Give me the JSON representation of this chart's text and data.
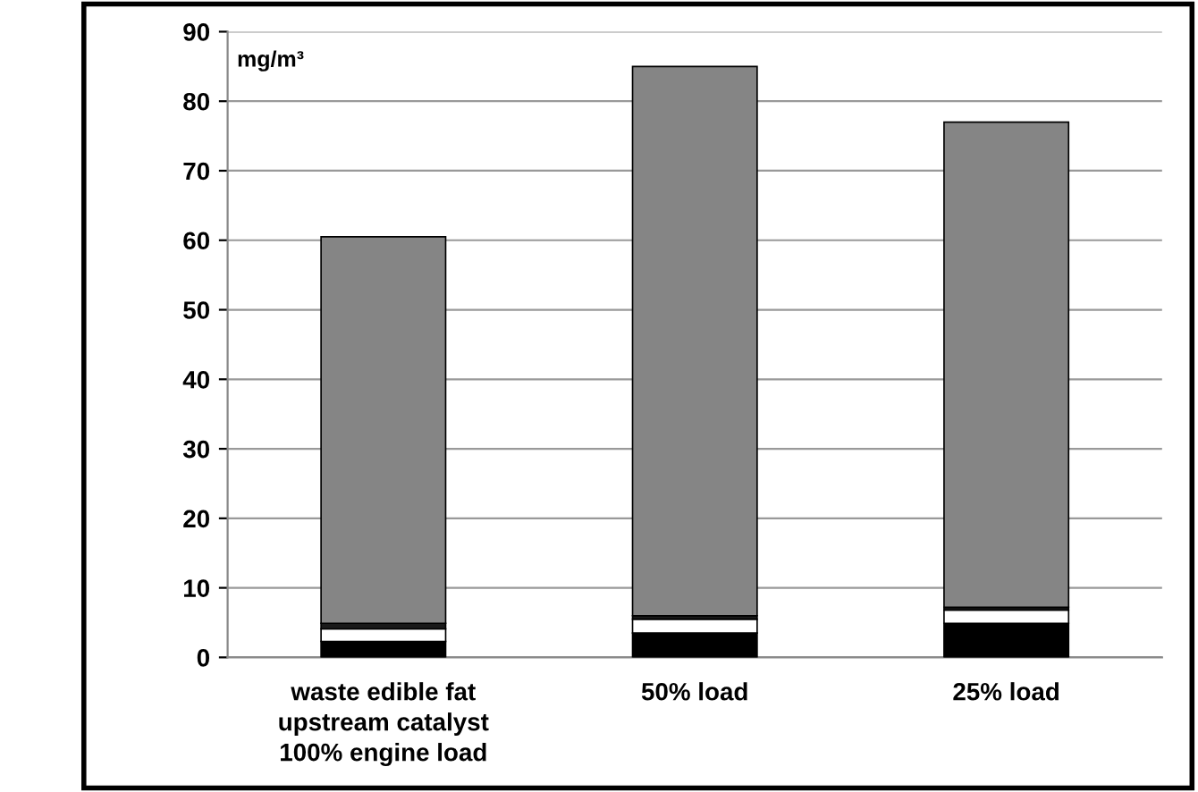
{
  "chart_data": {
    "type": "bar",
    "stacked": true,
    "ylabel": "mg/m³",
    "categories": [
      "waste edible fat\nupstream catalyst\n100% engine load",
      "50% load",
      "25% load"
    ],
    "series": [
      {
        "color": "#000000",
        "values": [
          2.3,
          3.5,
          4.9
        ]
      },
      {
        "color": "#ffffff",
        "values": [
          1.8,
          2.0,
          1.9
        ]
      },
      {
        "color": "#1a1a1a",
        "values": [
          0.8,
          0.5,
          0.4
        ]
      },
      {
        "color": "#858585",
        "values": [
          55.6,
          79.0,
          69.8
        ]
      }
    ],
    "ylim": [
      0,
      90
    ],
    "yticks": [
      0,
      10,
      20,
      30,
      40,
      50,
      60,
      70,
      80,
      90
    ],
    "grid": "y",
    "legend": false
  }
}
